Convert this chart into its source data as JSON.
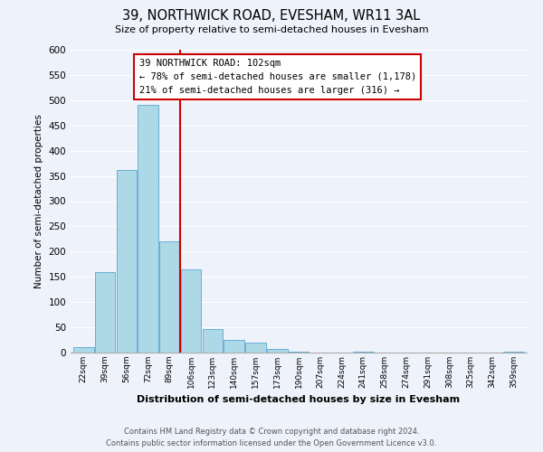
{
  "title": "39, NORTHWICK ROAD, EVESHAM, WR11 3AL",
  "subtitle": "Size of property relative to semi-detached houses in Evesham",
  "xlabel": "Distribution of semi-detached houses by size in Evesham",
  "ylabel": "Number of semi-detached properties",
  "bar_categories": [
    "22sqm",
    "39sqm",
    "56sqm",
    "72sqm",
    "89sqm",
    "106sqm",
    "123sqm",
    "140sqm",
    "157sqm",
    "173sqm",
    "190sqm",
    "207sqm",
    "224sqm",
    "241sqm",
    "258sqm",
    "274sqm",
    "291sqm",
    "308sqm",
    "325sqm",
    "342sqm",
    "359sqm"
  ],
  "bar_values": [
    10,
    160,
    362,
    490,
    220,
    165,
    47,
    25,
    20,
    8,
    2,
    0,
    0,
    2,
    0,
    0,
    0,
    0,
    0,
    0,
    2
  ],
  "bar_color": "#add8e6",
  "bar_edge_color": "#6baed6",
  "property_line_x": 4.5,
  "property_sqm": 102,
  "annotation_title": "39 NORTHWICK ROAD: 102sqm",
  "annotation_line1": "← 78% of semi-detached houses are smaller (1,178)",
  "annotation_line2": "21% of semi-detached houses are larger (316) →",
  "annotation_box_color": "#ffffff",
  "annotation_box_edge": "#cc0000",
  "property_line_color": "#cc0000",
  "ylim": [
    0,
    600
  ],
  "yticks": [
    0,
    50,
    100,
    150,
    200,
    250,
    300,
    350,
    400,
    450,
    500,
    550,
    600
  ],
  "footer_line1": "Contains HM Land Registry data © Crown copyright and database right 2024.",
  "footer_line2": "Contains public sector information licensed under the Open Government Licence v3.0.",
  "background_color": "#eef2fa"
}
